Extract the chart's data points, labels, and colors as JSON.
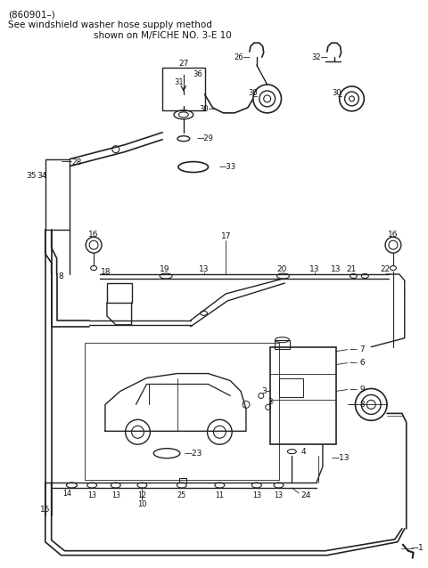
{
  "title_line1": "(860901–)",
  "title_line2": "See windshield washer hose supply method",
  "title_line3": "shown on M/FICHE NO. 3-E 10",
  "bg_color": "#ffffff",
  "line_color": "#222222",
  "text_color": "#111111"
}
